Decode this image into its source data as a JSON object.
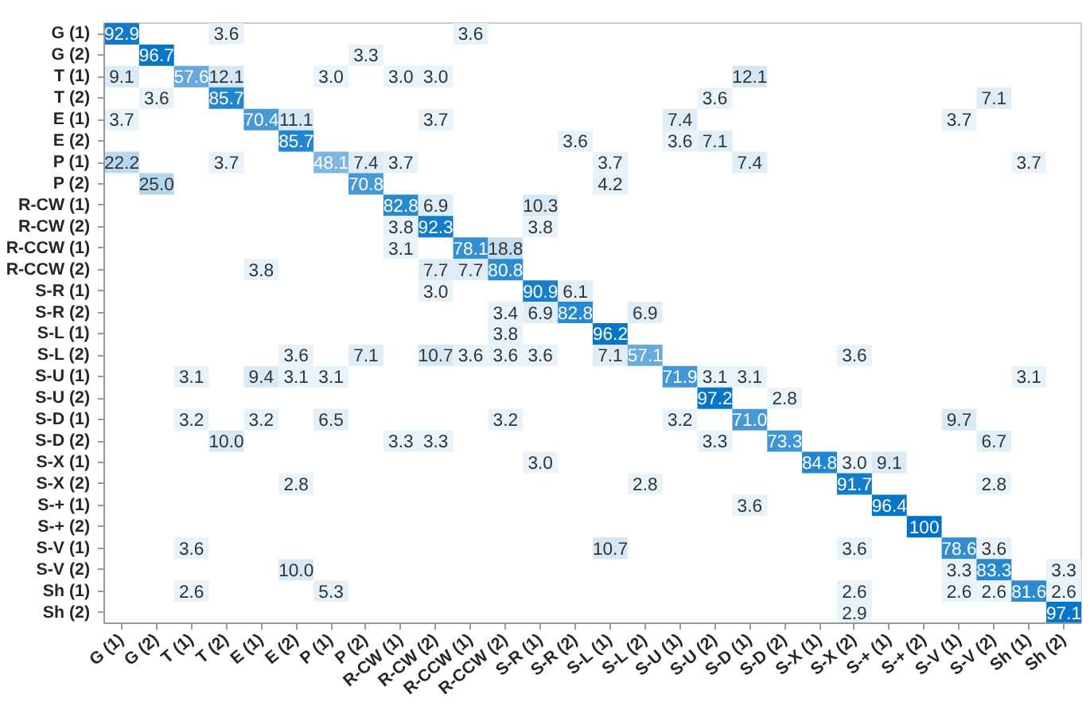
{
  "chart_data": {
    "type": "heatmap",
    "categories": [
      "G (1)",
      "G (2)",
      "T (1)",
      "T (2)",
      "E (1)",
      "E (2)",
      "P (1)",
      "P (2)",
      "R-CW (1)",
      "R-CW (2)",
      "R-CCW (1)",
      "R-CCW (2)",
      "S-R (1)",
      "S-R (2)",
      "S-L (1)",
      "S-L (2)",
      "S-U (1)",
      "S-U (2)",
      "S-D (1)",
      "S-D (2)",
      "S-X (1)",
      "S-X (2)",
      "S-+ (1)",
      "S-+ (2)",
      "S-V (1)",
      "S-V (2)",
      "Sh (1)",
      "Sh (2)"
    ],
    "y_categories": [
      "G (1)",
      "G (2)",
      "T (1)",
      "T (2)",
      "E (1)",
      "E (2)",
      "P (1)",
      "P (2)",
      "R-CW (1)",
      "R-CW (2)",
      "R-CCW (1)",
      "R-CCW (2)",
      "S-R (1)",
      "S-R (2)",
      "S-L (1)",
      "S-L (2)",
      "S-U (1)",
      "S-U (2)",
      "S-D (1)",
      "S-D (2)",
      "S-X (1)",
      "S-X (2)",
      "S-+ (1)",
      "S-+ (2)",
      "S-V (1)",
      "S-V (2)",
      "Sh (1)",
      "Sh (2)"
    ],
    "cells": [
      [
        92.9,
        null,
        null,
        3.6,
        null,
        null,
        null,
        null,
        null,
        null,
        3.6,
        null,
        null,
        null,
        null,
        null,
        null,
        null,
        null,
        null,
        null,
        null,
        null,
        null,
        null,
        null,
        null,
        null
      ],
      [
        null,
        96.7,
        null,
        null,
        null,
        null,
        null,
        3.3,
        null,
        null,
        null,
        null,
        null,
        null,
        null,
        null,
        null,
        null,
        null,
        null,
        null,
        null,
        null,
        null,
        null,
        null,
        null,
        null
      ],
      [
        9.1,
        null,
        57.6,
        12.1,
        null,
        null,
        3.0,
        null,
        3.0,
        3.0,
        null,
        null,
        null,
        null,
        null,
        null,
        null,
        null,
        12.1,
        null,
        null,
        null,
        null,
        null,
        null,
        null,
        null,
        null
      ],
      [
        null,
        3.6,
        null,
        85.7,
        null,
        null,
        null,
        null,
        null,
        null,
        null,
        null,
        null,
        null,
        null,
        null,
        null,
        3.6,
        null,
        null,
        null,
        null,
        null,
        null,
        null,
        7.1,
        null,
        null
      ],
      [
        3.7,
        null,
        null,
        null,
        70.4,
        11.1,
        null,
        null,
        null,
        3.7,
        null,
        null,
        null,
        null,
        null,
        null,
        7.4,
        null,
        null,
        null,
        null,
        null,
        null,
        null,
        3.7,
        null,
        null,
        null
      ],
      [
        null,
        null,
        null,
        null,
        null,
        85.7,
        null,
        null,
        null,
        null,
        null,
        null,
        null,
        3.6,
        null,
        null,
        3.6,
        7.1,
        null,
        null,
        null,
        null,
        null,
        null,
        null,
        null,
        null,
        null
      ],
      [
        22.2,
        null,
        null,
        3.7,
        null,
        null,
        48.1,
        7.4,
        3.7,
        null,
        null,
        null,
        null,
        null,
        3.7,
        null,
        null,
        null,
        7.4,
        null,
        null,
        null,
        null,
        null,
        null,
        null,
        3.7,
        null
      ],
      [
        null,
        25.0,
        null,
        null,
        null,
        null,
        null,
        70.8,
        null,
        null,
        null,
        null,
        null,
        null,
        4.2,
        null,
        null,
        null,
        null,
        null,
        null,
        null,
        null,
        null,
        null,
        null,
        null,
        null
      ],
      [
        null,
        null,
        null,
        null,
        null,
        null,
        null,
        null,
        82.8,
        6.9,
        null,
        null,
        10.3,
        null,
        null,
        null,
        null,
        null,
        null,
        null,
        null,
        null,
        null,
        null,
        null,
        null,
        null,
        null
      ],
      [
        null,
        null,
        null,
        null,
        null,
        null,
        null,
        null,
        3.8,
        92.3,
        null,
        null,
        3.8,
        null,
        null,
        null,
        null,
        null,
        null,
        null,
        null,
        null,
        null,
        null,
        null,
        null,
        null,
        null
      ],
      [
        null,
        null,
        null,
        null,
        null,
        null,
        null,
        null,
        3.1,
        null,
        78.1,
        18.8,
        null,
        null,
        null,
        null,
        null,
        null,
        null,
        null,
        null,
        null,
        null,
        null,
        null,
        null,
        null,
        null
      ],
      [
        null,
        null,
        null,
        null,
        3.8,
        null,
        null,
        null,
        null,
        7.7,
        7.7,
        80.8,
        null,
        null,
        null,
        null,
        null,
        null,
        null,
        null,
        null,
        null,
        null,
        null,
        null,
        null,
        null,
        null
      ],
      [
        null,
        null,
        null,
        null,
        null,
        null,
        null,
        null,
        null,
        3.0,
        null,
        null,
        90.9,
        6.1,
        null,
        null,
        null,
        null,
        null,
        null,
        null,
        null,
        null,
        null,
        null,
        null,
        null,
        null
      ],
      [
        null,
        null,
        null,
        null,
        null,
        null,
        null,
        null,
        null,
        null,
        null,
        3.4,
        6.9,
        82.8,
        null,
        6.9,
        null,
        null,
        null,
        null,
        null,
        null,
        null,
        null,
        null,
        null,
        null,
        null
      ],
      [
        null,
        null,
        null,
        null,
        null,
        null,
        null,
        null,
        null,
        null,
        null,
        3.8,
        null,
        null,
        96.2,
        null,
        null,
        null,
        null,
        null,
        null,
        null,
        null,
        null,
        null,
        null,
        null,
        null
      ],
      [
        null,
        null,
        null,
        null,
        null,
        3.6,
        null,
        7.1,
        null,
        10.7,
        3.6,
        3.6,
        3.6,
        null,
        7.1,
        57.1,
        null,
        null,
        null,
        null,
        null,
        3.6,
        null,
        null,
        null,
        null,
        null,
        null
      ],
      [
        null,
        null,
        3.1,
        null,
        9.4,
        3.1,
        3.1,
        null,
        null,
        null,
        null,
        null,
        null,
        null,
        null,
        null,
        71.9,
        3.1,
        3.1,
        null,
        null,
        null,
        null,
        null,
        null,
        null,
        3.1,
        null
      ],
      [
        null,
        null,
        null,
        null,
        null,
        null,
        null,
        null,
        null,
        null,
        null,
        null,
        null,
        null,
        null,
        null,
        null,
        97.2,
        null,
        2.8,
        null,
        null,
        null,
        null,
        null,
        null,
        null,
        null
      ],
      [
        null,
        null,
        3.2,
        null,
        3.2,
        null,
        6.5,
        null,
        null,
        null,
        null,
        3.2,
        null,
        null,
        null,
        null,
        3.2,
        null,
        71.0,
        null,
        null,
        null,
        null,
        null,
        9.7,
        null,
        null,
        null
      ],
      [
        null,
        null,
        null,
        10.0,
        null,
        null,
        null,
        null,
        3.3,
        3.3,
        null,
        null,
        null,
        null,
        null,
        null,
        null,
        3.3,
        null,
        73.3,
        null,
        null,
        null,
        null,
        null,
        6.7,
        null,
        null
      ],
      [
        null,
        null,
        null,
        null,
        null,
        null,
        null,
        null,
        null,
        null,
        null,
        null,
        3.0,
        null,
        null,
        null,
        null,
        null,
        null,
        null,
        84.8,
        3.0,
        9.1,
        null,
        null,
        null,
        null,
        null
      ],
      [
        null,
        null,
        null,
        null,
        null,
        2.8,
        null,
        null,
        null,
        null,
        null,
        null,
        null,
        null,
        null,
        2.8,
        null,
        null,
        null,
        null,
        null,
        91.7,
        null,
        null,
        null,
        2.8,
        null,
        null
      ],
      [
        null,
        null,
        null,
        null,
        null,
        null,
        null,
        null,
        null,
        null,
        null,
        null,
        null,
        null,
        null,
        null,
        null,
        null,
        3.6,
        null,
        null,
        null,
        96.4,
        null,
        null,
        null,
        null,
        null
      ],
      [
        null,
        null,
        null,
        null,
        null,
        null,
        null,
        null,
        null,
        null,
        null,
        null,
        null,
        null,
        null,
        null,
        null,
        null,
        null,
        null,
        null,
        null,
        null,
        100,
        null,
        null,
        null,
        null
      ],
      [
        null,
        null,
        3.6,
        null,
        null,
        null,
        null,
        null,
        null,
        null,
        null,
        null,
        null,
        null,
        10.7,
        null,
        null,
        null,
        null,
        null,
        null,
        3.6,
        null,
        null,
        78.6,
        3.6,
        null,
        null
      ],
      [
        null,
        null,
        null,
        null,
        null,
        10.0,
        null,
        null,
        null,
        null,
        null,
        null,
        null,
        null,
        null,
        null,
        null,
        null,
        null,
        null,
        null,
        null,
        null,
        null,
        3.3,
        83.3,
        null,
        3.3
      ],
      [
        null,
        null,
        2.6,
        null,
        null,
        null,
        5.3,
        null,
        null,
        null,
        null,
        null,
        null,
        null,
        null,
        null,
        null,
        null,
        null,
        null,
        null,
        2.6,
        null,
        null,
        2.6,
        2.6,
        81.6,
        2.6
      ],
      [
        null,
        null,
        null,
        null,
        null,
        null,
        null,
        null,
        null,
        null,
        null,
        null,
        null,
        null,
        null,
        null,
        null,
        null,
        null,
        null,
        null,
        2.9,
        null,
        null,
        null,
        null,
        null,
        97.1
      ]
    ],
    "data_labels": true,
    "cell_labels": [
      [
        "92.9",
        null,
        null,
        "3.6",
        null,
        null,
        null,
        null,
        null,
        null,
        "3.6",
        null,
        null,
        null,
        null,
        null,
        null,
        null,
        null,
        null,
        null,
        null,
        null,
        null,
        null,
        null,
        null,
        null
      ],
      [
        null,
        "96.7",
        null,
        null,
        null,
        null,
        null,
        "3.3",
        null,
        null,
        null,
        null,
        null,
        null,
        null,
        null,
        null,
        null,
        null,
        null,
        null,
        null,
        null,
        null,
        null,
        null,
        null,
        null
      ],
      [
        "9.1",
        null,
        "57.6",
        "12.1",
        null,
        null,
        "3.0",
        null,
        "3.0",
        "3.0",
        null,
        null,
        null,
        null,
        null,
        null,
        null,
        null,
        "12.1",
        null,
        null,
        null,
        null,
        null,
        null,
        null,
        null,
        null
      ],
      [
        null,
        "3.6",
        null,
        "85.7",
        null,
        null,
        null,
        null,
        null,
        null,
        null,
        null,
        null,
        null,
        null,
        null,
        null,
        "3.6",
        null,
        null,
        null,
        null,
        null,
        null,
        null,
        "7.1",
        null,
        null
      ],
      [
        "3.7",
        null,
        null,
        null,
        "70.4",
        "11.1",
        null,
        null,
        null,
        "3.7",
        null,
        null,
        null,
        null,
        null,
        null,
        "7.4",
        null,
        null,
        null,
        null,
        null,
        null,
        null,
        "3.7",
        null,
        null,
        null
      ],
      [
        null,
        null,
        null,
        null,
        null,
        "85.7",
        null,
        null,
        null,
        null,
        null,
        null,
        null,
        "3.6",
        null,
        null,
        "3.6",
        "7.1",
        null,
        null,
        null,
        null,
        null,
        null,
        null,
        null,
        null,
        null
      ],
      [
        "22.2",
        null,
        null,
        "3.7",
        null,
        null,
        "48.1",
        "7.4",
        "3.7",
        null,
        null,
        null,
        null,
        null,
        "3.7",
        null,
        null,
        null,
        "7.4",
        null,
        null,
        null,
        null,
        null,
        null,
        null,
        "3.7",
        null
      ],
      [
        null,
        "25.0",
        null,
        null,
        null,
        null,
        null,
        "70.8",
        null,
        null,
        null,
        null,
        null,
        null,
        "4.2",
        null,
        null,
        null,
        null,
        null,
        null,
        null,
        null,
        null,
        null,
        null,
        null,
        null
      ],
      [
        null,
        null,
        null,
        null,
        null,
        null,
        null,
        null,
        "82.8",
        "6.9",
        null,
        null,
        "10.3",
        null,
        null,
        null,
        null,
        null,
        null,
        null,
        null,
        null,
        null,
        null,
        null,
        null,
        null,
        null
      ],
      [
        null,
        null,
        null,
        null,
        null,
        null,
        null,
        null,
        "3.8",
        "92.3",
        null,
        null,
        "3.8",
        null,
        null,
        null,
        null,
        null,
        null,
        null,
        null,
        null,
        null,
        null,
        null,
        null,
        null,
        null
      ],
      [
        null,
        null,
        null,
        null,
        null,
        null,
        null,
        null,
        "3.1",
        null,
        "78.1",
        "18.8",
        null,
        null,
        null,
        null,
        null,
        null,
        null,
        null,
        null,
        null,
        null,
        null,
        null,
        null,
        null,
        null
      ],
      [
        null,
        null,
        null,
        null,
        "3.8",
        null,
        null,
        null,
        null,
        "7.7",
        "7.7",
        "80.8",
        null,
        null,
        null,
        null,
        null,
        null,
        null,
        null,
        null,
        null,
        null,
        null,
        null,
        null,
        null,
        null
      ],
      [
        null,
        null,
        null,
        null,
        null,
        null,
        null,
        null,
        null,
        "3.0",
        null,
        null,
        "90.9",
        "6.1",
        null,
        null,
        null,
        null,
        null,
        null,
        null,
        null,
        null,
        null,
        null,
        null,
        null,
        null
      ],
      [
        null,
        null,
        null,
        null,
        null,
        null,
        null,
        null,
        null,
        null,
        null,
        "3.4",
        "6.9",
        "82.8",
        null,
        "6.9",
        null,
        null,
        null,
        null,
        null,
        null,
        null,
        null,
        null,
        null,
        null,
        null
      ],
      [
        null,
        null,
        null,
        null,
        null,
        null,
        null,
        null,
        null,
        null,
        null,
        "3.8",
        null,
        null,
        "96.2",
        null,
        null,
        null,
        null,
        null,
        null,
        null,
        null,
        null,
        null,
        null,
        null,
        null
      ],
      [
        null,
        null,
        null,
        null,
        null,
        "3.6",
        null,
        "7.1",
        null,
        "10.7",
        "3.6",
        "3.6",
        "3.6",
        null,
        "7.1",
        "57.1",
        null,
        null,
        null,
        null,
        null,
        "3.6",
        null,
        null,
        null,
        null,
        null,
        null
      ],
      [
        null,
        null,
        "3.1",
        null,
        "9.4",
        "3.1",
        "3.1",
        null,
        null,
        null,
        null,
        null,
        null,
        null,
        null,
        null,
        "71.9",
        "3.1",
        "3.1",
        null,
        null,
        null,
        null,
        null,
        null,
        null,
        "3.1",
        null
      ],
      [
        null,
        null,
        null,
        null,
        null,
        null,
        null,
        null,
        null,
        null,
        null,
        null,
        null,
        null,
        null,
        null,
        null,
        "97.2",
        null,
        "2.8",
        null,
        null,
        null,
        null,
        null,
        null,
        null,
        null
      ],
      [
        null,
        null,
        "3.2",
        null,
        "3.2",
        null,
        "6.5",
        null,
        null,
        null,
        null,
        "3.2",
        null,
        null,
        null,
        null,
        "3.2",
        null,
        "71.0",
        null,
        null,
        null,
        null,
        null,
        "9.7",
        null,
        null,
        null
      ],
      [
        null,
        null,
        null,
        "10.0",
        null,
        null,
        null,
        null,
        "3.3",
        "3.3",
        null,
        null,
        null,
        null,
        null,
        null,
        null,
        "3.3",
        null,
        "73.3",
        null,
        null,
        null,
        null,
        null,
        "6.7",
        null,
        null
      ],
      [
        null,
        null,
        null,
        null,
        null,
        null,
        null,
        null,
        null,
        null,
        null,
        null,
        "3.0",
        null,
        null,
        null,
        null,
        null,
        null,
        null,
        "84.8",
        "3.0",
        "9.1",
        null,
        null,
        null,
        null,
        null
      ],
      [
        null,
        null,
        null,
        null,
        null,
        "2.8",
        null,
        null,
        null,
        null,
        null,
        null,
        null,
        null,
        null,
        "2.8",
        null,
        null,
        null,
        null,
        null,
        "91.7",
        null,
        null,
        null,
        "2.8",
        null,
        null
      ],
      [
        null,
        null,
        null,
        null,
        null,
        null,
        null,
        null,
        null,
        null,
        null,
        null,
        null,
        null,
        null,
        null,
        null,
        null,
        "3.6",
        null,
        null,
        null,
        "96.4",
        null,
        null,
        null,
        null,
        null
      ],
      [
        null,
        null,
        null,
        null,
        null,
        null,
        null,
        null,
        null,
        null,
        null,
        null,
        null,
        null,
        null,
        null,
        null,
        null,
        null,
        null,
        null,
        null,
        null,
        "100",
        null,
        null,
        null,
        null
      ],
      [
        null,
        null,
        "3.6",
        null,
        null,
        null,
        null,
        null,
        null,
        null,
        null,
        null,
        null,
        null,
        "10.7",
        null,
        null,
        null,
        null,
        null,
        null,
        "3.6",
        null,
        null,
        "78.6",
        "3.6",
        null,
        null
      ],
      [
        null,
        null,
        null,
        null,
        null,
        "10.0",
        null,
        null,
        null,
        null,
        null,
        null,
        null,
        null,
        null,
        null,
        null,
        null,
        null,
        null,
        null,
        null,
        null,
        null,
        "3.3",
        "83.3",
        null,
        "3.3"
      ],
      [
        null,
        null,
        "2.6",
        null,
        null,
        null,
        "5.3",
        null,
        null,
        null,
        null,
        null,
        null,
        null,
        null,
        null,
        null,
        null,
        null,
        null,
        null,
        "2.6",
        null,
        null,
        "2.6",
        "2.6",
        "81.6",
        "2.6"
      ],
      [
        null,
        null,
        null,
        null,
        null,
        null,
        null,
        null,
        null,
        null,
        null,
        null,
        null,
        null,
        null,
        null,
        null,
        null,
        null,
        null,
        null,
        "2.9",
        null,
        null,
        null,
        null,
        null,
        "97.1"
      ]
    ]
  }
}
